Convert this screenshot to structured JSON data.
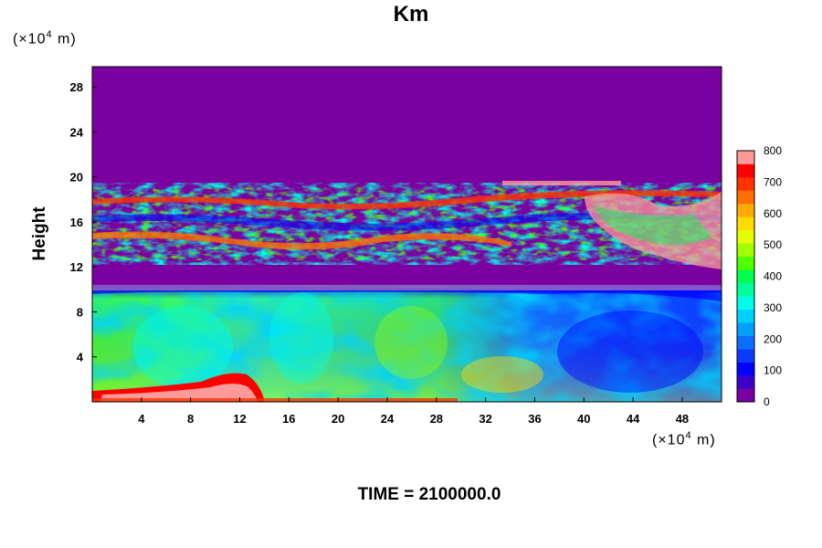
{
  "chart_data": {
    "type": "heatmap",
    "title": "Km",
    "ylabel": "Height",
    "y_unit": {
      "prefix": "(×10",
      "exp": "4",
      "suffix": " m)"
    },
    "x_unit": {
      "prefix": "(×10",
      "exp": "4",
      "suffix": " m)"
    },
    "caption": "TIME = 2100000.0",
    "xlim": [
      0,
      51.2
    ],
    "ylim": [
      0,
      29.8
    ],
    "x_ticks": [
      4,
      8,
      12,
      16,
      20,
      24,
      28,
      32,
      36,
      40,
      44,
      48
    ],
    "y_ticks": [
      4,
      8,
      12,
      16,
      20,
      24,
      28
    ],
    "colorbar": {
      "min": 0,
      "max": 800,
      "ticks": [
        0,
        100,
        200,
        300,
        400,
        500,
        600,
        700,
        800
      ],
      "colors": [
        "#7a00a0",
        "#3c00c8",
        "#0000ff",
        "#0a3cff",
        "#0a6eff",
        "#00a0ff",
        "#00d2ff",
        "#00ffe6",
        "#00ff9b",
        "#00ff50",
        "#50ff00",
        "#a0ff00",
        "#e6ff00",
        "#ffdc00",
        "#ffaa00",
        "#ff6e00",
        "#ff3200",
        "#ff0000",
        "#ff9a9a"
      ]
    },
    "regions": [
      {
        "name": "upper-calm",
        "y_range": [
          19,
          29.8
        ],
        "value": 0
      },
      {
        "name": "upper-turbulent-layer",
        "y_range": [
          10.5,
          19
        ],
        "value_range": [
          0,
          800
        ]
      },
      {
        "name": "lower-boundary-layer",
        "y_range": [
          0,
          10
        ],
        "value_range": [
          100,
          800
        ]
      },
      {
        "name": "surface-maximum",
        "x_range": [
          3,
          16
        ],
        "y_range": [
          0,
          1.5
        ],
        "value": 800
      }
    ]
  }
}
